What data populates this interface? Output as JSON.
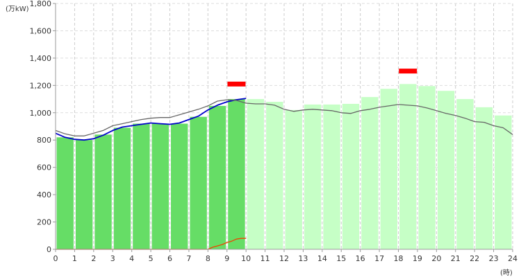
{
  "chart_data": {
    "type": "bar",
    "title": "",
    "xlabel": "(時)",
    "ylabel": "(万kW)",
    "xlim": [
      0,
      24
    ],
    "ylim": [
      0,
      1800
    ],
    "grid": true,
    "legend": "none",
    "x_ticks": [
      "0",
      "1",
      "2",
      "3",
      "4",
      "5",
      "6",
      "7",
      "8",
      "9",
      "10",
      "11",
      "12",
      "13",
      "14",
      "15",
      "16",
      "17",
      "18",
      "19",
      "20",
      "21",
      "22",
      "23",
      "24"
    ],
    "y_ticks": [
      "0",
      "200",
      "400",
      "600",
      "800",
      "1,000",
      "1,200",
      "1,400",
      "1,600",
      "1,800"
    ],
    "hours": [
      0,
      1,
      2,
      3,
      4,
      5,
      6,
      7,
      8,
      9,
      10,
      11,
      12,
      13,
      14,
      15,
      16,
      17,
      18,
      19,
      20,
      21,
      22,
      23
    ],
    "bars_actual": {
      "hours": [
        0,
        1,
        2,
        3,
        4,
        5,
        6,
        7,
        8,
        9
      ],
      "values": [
        820,
        800,
        840,
        890,
        920,
        920,
        920,
        970,
        1050,
        1100
      ],
      "color": "#66dd66"
    },
    "bars_forecast": {
      "hours": [
        10,
        11,
        12,
        13,
        14,
        15,
        16,
        17,
        18,
        19,
        20,
        21,
        22,
        23
      ],
      "values": [
        1100,
        1080,
        1020,
        1060,
        1060,
        1065,
        1115,
        1175,
        1210,
        1195,
        1160,
        1100,
        1040,
        980
      ],
      "color": "#c6ffc6"
    },
    "series": [
      {
        "name": "",
        "color": "#0000cc",
        "x": [
          0,
          0.5,
          1,
          1.5,
          2,
          2.5,
          3,
          3.5,
          4,
          4.5,
          5,
          5.5,
          6,
          6.5,
          7,
          7.5,
          8,
          8.5,
          9,
          9.5,
          10
        ],
        "y": [
          850,
          820,
          805,
          800,
          810,
          835,
          870,
          895,
          905,
          915,
          925,
          920,
          915,
          925,
          950,
          975,
          1020,
          1055,
          1080,
          1095,
          1105
        ]
      },
      {
        "name": "",
        "color": "#666666",
        "x": [
          0,
          0.5,
          1,
          1.5,
          2,
          2.5,
          3,
          3.5,
          4,
          4.5,
          5,
          5.5,
          6,
          6.5,
          7,
          7.5,
          8,
          8.5,
          9,
          9.5,
          10,
          10.5,
          11,
          11.5,
          12,
          12.5,
          13,
          13.5,
          14,
          14.5,
          15,
          15.5,
          16,
          16.5,
          17,
          17.5,
          18,
          18.5,
          19,
          19.5,
          20,
          20.5,
          21,
          21.5,
          22,
          22.5,
          23,
          23.5,
          24
        ],
        "y": [
          870,
          845,
          830,
          830,
          850,
          870,
          905,
          920,
          935,
          950,
          960,
          965,
          965,
          985,
          1005,
          1025,
          1050,
          1085,
          1095,
          1090,
          1070,
          1065,
          1065,
          1055,
          1025,
          1010,
          1020,
          1025,
          1020,
          1015,
          1000,
          995,
          1015,
          1025,
          1040,
          1050,
          1060,
          1055,
          1050,
          1035,
          1015,
          995,
          980,
          960,
          935,
          930,
          905,
          890,
          840
        ]
      },
      {
        "name": "",
        "color": "#ee4400",
        "x": [
          0,
          1,
          2,
          3,
          4,
          5,
          6,
          7,
          8,
          8.25,
          8.5,
          8.75,
          9,
          9.25,
          9.5,
          9.75,
          10
        ],
        "y": [
          0,
          0,
          0,
          0,
          0,
          0,
          0,
          0,
          0,
          15,
          25,
          35,
          50,
          60,
          75,
          80,
          80
        ]
      }
    ],
    "peak_markers": [
      {
        "hour": 9,
        "value": 1210,
        "color": "#ff0000"
      },
      {
        "hour": 18,
        "value": 1305,
        "color": "#ff0000"
      }
    ]
  }
}
